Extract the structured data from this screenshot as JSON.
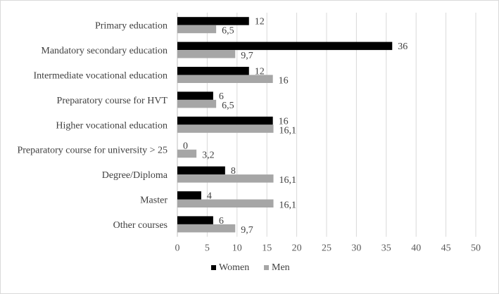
{
  "chart_data": {
    "type": "bar",
    "orientation": "horizontal",
    "title": "",
    "xlabel": "",
    "ylabel": "",
    "categories": [
      "Primary education",
      "Mandatory secondary education",
      "Intermediate vocational education",
      "Preparatory course for HVT",
      "Higher vocational education",
      "Preparatory course for university > 25",
      "Degree/Diploma",
      "Master",
      "Other courses"
    ],
    "series": [
      {
        "name": "Women",
        "color": "#000000",
        "values": [
          12,
          36,
          12,
          6,
          16,
          0,
          8,
          4,
          6
        ],
        "labels": [
          "12",
          "36",
          "12",
          "6",
          "16",
          "0",
          "8",
          "4",
          "6"
        ]
      },
      {
        "name": "Men",
        "color": "#a6a6a6",
        "values": [
          6.5,
          9.7,
          16,
          6.5,
          16.1,
          3.2,
          16.1,
          16.1,
          9.7
        ],
        "labels": [
          "6,5",
          "9,7",
          "16",
          "6,5",
          "16,1",
          "3,2",
          "16,1",
          "16,1",
          "9,7"
        ]
      }
    ],
    "xlim": [
      0,
      50
    ],
    "xticks": [
      "0",
      "5",
      "10",
      "15",
      "20",
      "25",
      "30",
      "35",
      "40",
      "45",
      "50"
    ],
    "grid": true,
    "legend_position": "bottom"
  }
}
